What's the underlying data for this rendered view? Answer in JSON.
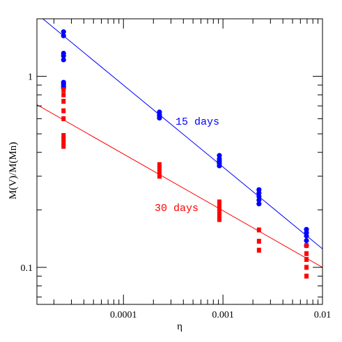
{
  "chart_data": {
    "type": "scatter",
    "xlabel": "η",
    "ylabel": "M(V)/M(Mn)",
    "xscale": "log",
    "yscale": "log",
    "xlim": [
      1.35e-05,
      0.01
    ],
    "ylim": [
      0.064,
      2.0
    ],
    "grid": false,
    "x_tick_labels": [
      {
        "value": 0.0001,
        "label": "0.0001"
      },
      {
        "value": 0.001,
        "label": "0.001"
      },
      {
        "value": 0.01,
        "label": "0.01"
      }
    ],
    "y_tick_labels": [
      {
        "value": 1,
        "label": "1"
      },
      {
        "value": 0.1,
        "label": "0.1"
      }
    ],
    "series": [
      {
        "name": "15 days",
        "color": "#0000ff",
        "marker": "circle",
        "points": [
          [
            2.5e-05,
            1.71
          ],
          [
            2.5e-05,
            1.63
          ],
          [
            2.5e-05,
            1.32
          ],
          [
            2.5e-05,
            1.28
          ],
          [
            2.5e-05,
            1.22
          ],
          [
            2.5e-05,
            0.93
          ],
          [
            2.5e-05,
            0.91
          ],
          [
            2.5e-05,
            0.89
          ],
          [
            2.5e-05,
            0.87
          ],
          [
            0.00023,
            0.65
          ],
          [
            0.00023,
            0.63
          ],
          [
            0.00023,
            0.62
          ],
          [
            0.00023,
            0.605
          ],
          [
            0.00092,
            0.385
          ],
          [
            0.00092,
            0.37
          ],
          [
            0.00092,
            0.36
          ],
          [
            0.00092,
            0.35
          ],
          [
            0.00092,
            0.34
          ],
          [
            0.0023,
            0.255
          ],
          [
            0.0023,
            0.245
          ],
          [
            0.0023,
            0.235
          ],
          [
            0.0023,
            0.225
          ],
          [
            0.0023,
            0.215
          ],
          [
            0.0069,
            0.158
          ],
          [
            0.0069,
            0.152
          ],
          [
            0.0069,
            0.146
          ],
          [
            0.0069,
            0.138
          ],
          [
            0.0069,
            0.13
          ]
        ],
        "fit_line": {
          "x": [
            1.35e-05,
            0.01
          ],
          "y": [
            2.12,
            0.125
          ]
        }
      },
      {
        "name": "30 days",
        "color": "#ff0000",
        "marker": "square",
        "points": [
          [
            2.5e-05,
            0.85
          ],
          [
            2.5e-05,
            0.8
          ],
          [
            2.5e-05,
            0.74
          ],
          [
            2.5e-05,
            0.66
          ],
          [
            2.5e-05,
            0.6
          ],
          [
            2.5e-05,
            0.49
          ],
          [
            2.5e-05,
            0.47
          ],
          [
            2.5e-05,
            0.45
          ],
          [
            2.5e-05,
            0.43
          ],
          [
            0.00023,
            0.345
          ],
          [
            0.00023,
            0.33
          ],
          [
            0.00023,
            0.315
          ],
          [
            0.00023,
            0.3
          ],
          [
            0.00092,
            0.22
          ],
          [
            0.00092,
            0.208
          ],
          [
            0.00092,
            0.197
          ],
          [
            0.00092,
            0.187
          ],
          [
            0.00092,
            0.178
          ],
          [
            0.0023,
            0.157
          ],
          [
            0.0023,
            0.137
          ],
          [
            0.0023,
            0.123
          ],
          [
            0.0069,
            0.13
          ],
          [
            0.0069,
            0.118
          ],
          [
            0.0069,
            0.11
          ],
          [
            0.0069,
            0.1
          ],
          [
            0.0069,
            0.09
          ]
        ],
        "fit_line": {
          "x": [
            1.35e-05,
            0.01
          ],
          "y": [
            0.71,
            0.1
          ]
        }
      }
    ]
  }
}
